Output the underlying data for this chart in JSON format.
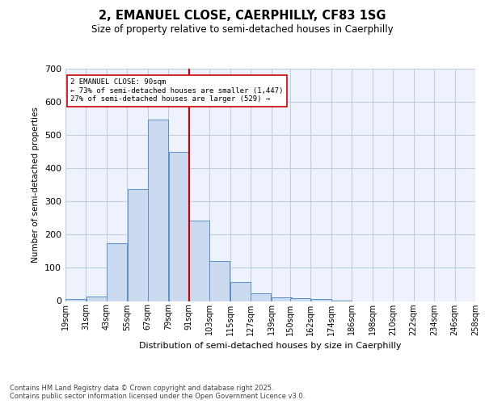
{
  "title": "2, EMANUEL CLOSE, CAERPHILLY, CF83 1SG",
  "subtitle": "Size of property relative to semi-detached houses in Caerphilly",
  "xlabel": "Distribution of semi-detached houses by size in Caerphilly",
  "ylabel": "Number of semi-detached properties",
  "bins": [
    19,
    31,
    43,
    55,
    67,
    79,
    91,
    103,
    115,
    127,
    139,
    150,
    162,
    174,
    186,
    198,
    210,
    222,
    234,
    246,
    258
  ],
  "counts": [
    5,
    13,
    175,
    338,
    547,
    450,
    243,
    121,
    57,
    23,
    10,
    8,
    5,
    2,
    0,
    0,
    0,
    0,
    0,
    0
  ],
  "bar_facecolor": "#ccdaf0",
  "bar_edgecolor": "#5b8fc9",
  "vline_x": 91,
  "vline_color": "#cc0000",
  "annotation_text": "2 EMANUEL CLOSE: 90sqm\n← 73% of semi-detached houses are smaller (1,447)\n27% of semi-detached houses are larger (529) →",
  "annotation_box_edgecolor": "#cc0000",
  "annotation_box_facecolor": "white",
  "tick_labels": [
    "19sqm",
    "31sqm",
    "43sqm",
    "55sqm",
    "67sqm",
    "79sqm",
    "91sqm",
    "103sqm",
    "115sqm",
    "127sqm",
    "139sqm",
    "150sqm",
    "162sqm",
    "174sqm",
    "186sqm",
    "198sqm",
    "210sqm",
    "222sqm",
    "234sqm",
    "246sqm",
    "258sqm"
  ],
  "ylim": [
    0,
    700
  ],
  "yticks": [
    0,
    100,
    200,
    300,
    400,
    500,
    600,
    700
  ],
  "grid_color": "#c0cfe0",
  "background_color": "#eef2fc",
  "footer": "Contains HM Land Registry data © Crown copyright and database right 2025.\nContains public sector information licensed under the Open Government Licence v3.0."
}
